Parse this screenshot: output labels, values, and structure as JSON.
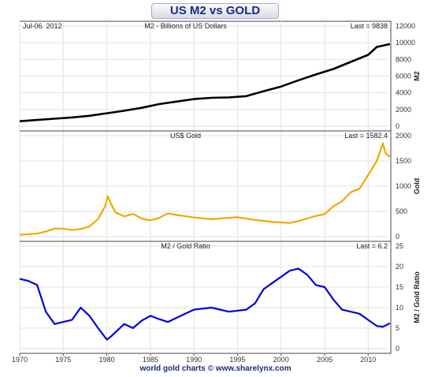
{
  "header": {
    "title": "US M2 vs GOLD"
  },
  "footer": {
    "text": "world gold charts © www.sharelynx.com"
  },
  "chart_data": [
    {
      "type": "line",
      "title": "M2 - Billions of US Dollars",
      "date_label": "Jul-06. 2012",
      "last_label": "Last = 9838",
      "ylabel": "M2",
      "ylim": [
        0,
        12000
      ],
      "yticks": [
        0,
        2000,
        4000,
        6000,
        8000,
        10000,
        12000
      ],
      "grid": true,
      "color": "#000000",
      "series": [
        {
          "x": [
            1970,
            1972,
            1974,
            1976,
            1978,
            1980,
            1982,
            1984,
            1986,
            1988,
            1990,
            1992,
            1994,
            1996,
            1998,
            2000,
            2002,
            2004,
            2006,
            2008,
            2010,
            2011,
            2012.5
          ],
          "values": [
            600,
            750,
            900,
            1050,
            1250,
            1550,
            1850,
            2200,
            2650,
            2950,
            3250,
            3400,
            3450,
            3600,
            4200,
            4750,
            5500,
            6200,
            6850,
            7700,
            8550,
            9500,
            9838
          ]
        }
      ]
    },
    {
      "type": "line",
      "title": "US$ Gold",
      "last_label": "Last = 1582.4",
      "ylabel": "Gold",
      "ylim": [
        0,
        2000
      ],
      "yticks": [
        0,
        500,
        1000,
        1500,
        2000
      ],
      "grid": true,
      "color": "#f0a800",
      "series": [
        {
          "x": [
            1970,
            1972,
            1973,
            1974,
            1975,
            1976,
            1977,
            1978,
            1979,
            1979.8,
            1980.1,
            1980.5,
            1981,
            1982,
            1983,
            1984,
            1985,
            1986,
            1987,
            1988,
            1990,
            1992,
            1995,
            1997,
            1999,
            2001,
            2002,
            2003,
            2004,
            2005,
            2006,
            2007,
            2008,
            2009,
            2010,
            2011,
            2011.7,
            2012,
            2012.5
          ],
          "values": [
            36,
            60,
            100,
            160,
            160,
            130,
            150,
            200,
            350,
            600,
            800,
            640,
            480,
            400,
            450,
            360,
            320,
            370,
            460,
            430,
            380,
            345,
            385,
            330,
            290,
            270,
            310,
            360,
            410,
            445,
            600,
            700,
            880,
            950,
            1220,
            1500,
            1850,
            1650,
            1582
          ]
        }
      ]
    },
    {
      "type": "line",
      "title": "M2 / Gold Ratio",
      "last_label": "Last = 6.2",
      "ylabel": "M2 / Gold Ratio",
      "ylim": [
        0,
        25
      ],
      "yticks": [
        0,
        5,
        10,
        15,
        20,
        25
      ],
      "xticks": [
        1970,
        1975,
        1980,
        1985,
        1990,
        1995,
        2000,
        2005,
        2010
      ],
      "xlim": [
        1970,
        2012.6
      ],
      "grid": true,
      "color": "#0000dd",
      "series": [
        {
          "x": [
            1970,
            1971,
            1972,
            1973,
            1974,
            1975,
            1976,
            1977,
            1978,
            1979,
            1980,
            1980.5,
            1981,
            1982,
            1983,
            1984,
            1985,
            1986,
            1987,
            1988,
            1989,
            1990,
            1992,
            1994,
            1996,
            1997,
            1998,
            1999,
            2000,
            2001,
            2002,
            2003,
            2004,
            2005,
            2006,
            2007,
            2008,
            2009,
            2010,
            2011,
            2011.7,
            2012.5
          ],
          "values": [
            17,
            16.5,
            15.5,
            9,
            6,
            6.5,
            7,
            10,
            8,
            5,
            2.2,
            3,
            4,
            6,
            5,
            6.8,
            8,
            7.2,
            6.5,
            7.5,
            8.5,
            9.5,
            10,
            9,
            9.5,
            11,
            14.5,
            16,
            17.5,
            19,
            19.5,
            18,
            15.5,
            15,
            12,
            9.5,
            9,
            8.5,
            7,
            5.5,
            5.3,
            6.2
          ]
        }
      ]
    }
  ]
}
